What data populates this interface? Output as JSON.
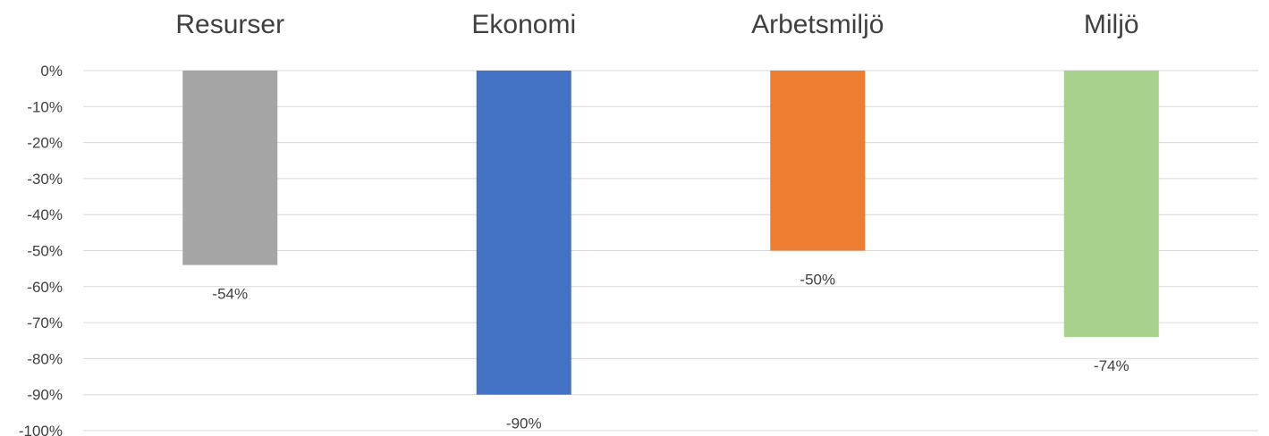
{
  "chart_data": {
    "type": "bar",
    "orientation": "vertical",
    "categories": [
      "Resurser",
      "Ekonomi",
      "Arbetsmiljö",
      "Miljö"
    ],
    "values": [
      -54,
      -90,
      -50,
      -74
    ],
    "data_labels": [
      "-54%",
      "-90%",
      "-50%",
      "-74%"
    ],
    "bar_colors": [
      "#a5a5a5",
      "#4472c4",
      "#ed7d31",
      "#a9d18e"
    ],
    "category_axis_position": "top",
    "ylim": [
      -100,
      0
    ],
    "y_ticks": [
      0,
      -10,
      -20,
      -30,
      -40,
      -50,
      -60,
      -70,
      -80,
      -90,
      -100
    ],
    "y_tick_labels": [
      "0%",
      "-10%",
      "-20%",
      "-30%",
      "-40%",
      "-50%",
      "-60%",
      "-70%",
      "-80%",
      "-90%",
      "-100%"
    ],
    "grid": true,
    "legend": "none"
  }
}
